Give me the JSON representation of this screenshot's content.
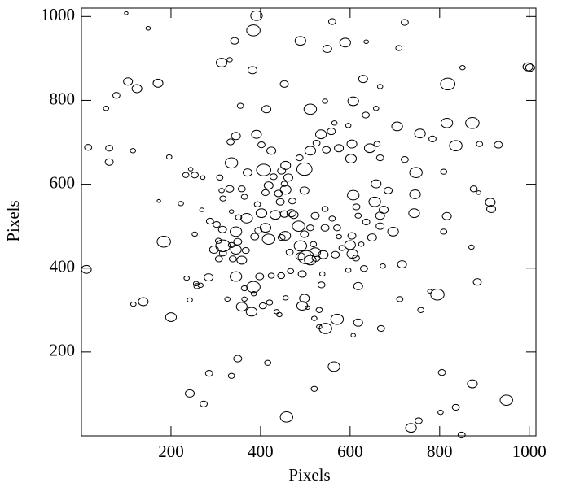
{
  "chart_data": {
    "type": "ellipse-scatter",
    "x_label": "Pixels",
    "y_label": "Pixels",
    "xlim": [
      0,
      1015
    ],
    "ylim": [
      0,
      1020
    ],
    "xticks": [
      200,
      400,
      600,
      800,
      1000
    ],
    "yticks": [
      200,
      400,
      600,
      800,
      1000
    ],
    "points": [
      [
        100,
        1008,
        4
      ],
      [
        149,
        972,
        5
      ],
      [
        391,
        1002,
        13
      ],
      [
        384,
        967,
        15
      ],
      [
        560,
        988,
        8
      ],
      [
        722,
        986,
        8
      ],
      [
        489,
        942,
        12
      ],
      [
        342,
        942,
        9
      ],
      [
        549,
        923,
        10
      ],
      [
        589,
        938,
        12
      ],
      [
        636,
        940,
        5
      ],
      [
        709,
        925,
        7
      ],
      [
        313,
        890,
        12
      ],
      [
        331,
        897,
        6
      ],
      [
        382,
        872,
        10
      ],
      [
        104,
        845,
        10
      ],
      [
        124,
        828,
        11
      ],
      [
        171,
        841,
        11
      ],
      [
        55,
        781,
        6
      ],
      [
        78,
        812,
        8
      ],
      [
        453,
        839,
        9
      ],
      [
        629,
        851,
        10
      ],
      [
        667,
        833,
        6
      ],
      [
        818,
        839,
        16
      ],
      [
        851,
        878,
        6
      ],
      [
        413,
        779,
        10
      ],
      [
        355,
        787,
        7
      ],
      [
        511,
        779,
        14
      ],
      [
        544,
        798,
        6
      ],
      [
        607,
        798,
        12
      ],
      [
        658,
        781,
        6
      ],
      [
        635,
        765,
        8
      ],
      [
        565,
        746,
        6
      ],
      [
        535,
        719,
        12
      ],
      [
        558,
        726,
        9
      ],
      [
        596,
        740,
        6
      ],
      [
        705,
        738,
        12
      ],
      [
        756,
        721,
        12
      ],
      [
        784,
        708,
        8
      ],
      [
        816,
        746,
        13
      ],
      [
        873,
        746,
        15
      ],
      [
        836,
        692,
        14
      ],
      [
        889,
        696,
        7
      ],
      [
        931,
        694,
        9
      ],
      [
        1002,
        878,
        10
      ],
      [
        15,
        688,
        8
      ],
      [
        62,
        686,
        8
      ],
      [
        62,
        653,
        9
      ],
      [
        115,
        680,
        6
      ],
      [
        196,
        665,
        6
      ],
      [
        333,
        701,
        8
      ],
      [
        345,
        715,
        10
      ],
      [
        391,
        719,
        11
      ],
      [
        402,
        694,
        8
      ],
      [
        424,
        680,
        10
      ],
      [
        407,
        634,
        16
      ],
      [
        371,
        628,
        10
      ],
      [
        335,
        651,
        14
      ],
      [
        498,
        636,
        17
      ],
      [
        487,
        663,
        8
      ],
      [
        511,
        680,
        12
      ],
      [
        547,
        682,
        9
      ],
      [
        525,
        698,
        8
      ],
      [
        575,
        686,
        10
      ],
      [
        602,
        661,
        12
      ],
      [
        604,
        696,
        11
      ],
      [
        644,
        686,
        12
      ],
      [
        660,
        696,
        7
      ],
      [
        667,
        663,
        8
      ],
      [
        722,
        659,
        8
      ],
      [
        747,
        628,
        14
      ],
      [
        745,
        576,
        12
      ],
      [
        809,
        630,
        7
      ],
      [
        876,
        589,
        8
      ],
      [
        887,
        580,
        5
      ],
      [
        913,
        557,
        11
      ],
      [
        915,
        541,
        10
      ],
      [
        816,
        524,
        10
      ],
      [
        809,
        487,
        7
      ],
      [
        871,
        450,
        6
      ],
      [
        884,
        367,
        9
      ],
      [
        795,
        337,
        15
      ],
      [
        778,
        345,
        5
      ],
      [
        758,
        300,
        7
      ],
      [
        716,
        409,
        10
      ],
      [
        673,
        405,
        6
      ],
      [
        711,
        326,
        7
      ],
      [
        743,
        531,
        12
      ],
      [
        696,
        487,
        12
      ],
      [
        675,
        539,
        10
      ],
      [
        655,
        558,
        13
      ],
      [
        658,
        601,
        11
      ],
      [
        685,
        585,
        9
      ],
      [
        667,
        525,
        10
      ],
      [
        667,
        500,
        9
      ],
      [
        649,
        473,
        10
      ],
      [
        636,
        510,
        8
      ],
      [
        618,
        525,
        7
      ],
      [
        614,
        546,
        8
      ],
      [
        604,
        477,
        9
      ],
      [
        600,
        455,
        12
      ],
      [
        613,
        424,
        8
      ],
      [
        605,
        434,
        12
      ],
      [
        607,
        574,
        13
      ],
      [
        625,
        457,
        6
      ],
      [
        631,
        399,
        8
      ],
      [
        567,
        432,
        9
      ],
      [
        540,
        432,
        11
      ],
      [
        522,
        438,
        12
      ],
      [
        511,
        419,
        13
      ],
      [
        489,
        453,
        14
      ],
      [
        502,
        426,
        18
      ],
      [
        498,
        585,
        10
      ],
      [
        456,
        587,
        12
      ],
      [
        440,
        578,
        9
      ],
      [
        444,
        558,
        9
      ],
      [
        433,
        527,
        12
      ],
      [
        453,
        529,
        9
      ],
      [
        462,
        616,
        10
      ],
      [
        456,
        645,
        11
      ],
      [
        447,
        632,
        9
      ],
      [
        429,
        618,
        8
      ],
      [
        418,
        597,
        10
      ],
      [
        411,
        580,
        8
      ],
      [
        393,
        552,
        7
      ],
      [
        402,
        531,
        12
      ],
      [
        411,
        496,
        12
      ],
      [
        395,
        490,
        8
      ],
      [
        387,
        475,
        9
      ],
      [
        418,
        469,
        14
      ],
      [
        455,
        477,
        12
      ],
      [
        469,
        531,
        10
      ],
      [
        369,
        519,
        13
      ],
      [
        351,
        521,
        7
      ],
      [
        335,
        535,
        5
      ],
      [
        345,
        487,
        13
      ],
      [
        349,
        463,
        9
      ],
      [
        345,
        444,
        12
      ],
      [
        367,
        442,
        8
      ],
      [
        358,
        419,
        11
      ],
      [
        316,
        436,
        8
      ],
      [
        316,
        453,
        16
      ],
      [
        302,
        504,
        8
      ],
      [
        315,
        492,
        9
      ],
      [
        335,
        455,
        7
      ],
      [
        338,
        422,
        8
      ],
      [
        307,
        422,
        8
      ],
      [
        296,
        444,
        10
      ],
      [
        306,
        465,
        7
      ],
      [
        345,
        380,
        13
      ],
      [
        384,
        355,
        15
      ],
      [
        398,
        380,
        9
      ],
      [
        424,
        382,
        7
      ],
      [
        446,
        382,
        8
      ],
      [
        467,
        393,
        7
      ],
      [
        493,
        386,
        9
      ],
      [
        447,
        473,
        8
      ],
      [
        485,
        500,
        14
      ],
      [
        498,
        481,
        9
      ],
      [
        518,
        457,
        7
      ],
      [
        489,
        428,
        10
      ],
      [
        465,
        438,
        8
      ],
      [
        524,
        424,
        9
      ],
      [
        498,
        328,
        11
      ],
      [
        531,
        300,
        7
      ],
      [
        536,
        360,
        8
      ],
      [
        538,
        386,
        6
      ],
      [
        596,
        395,
        6
      ],
      [
        618,
        357,
        10
      ],
      [
        582,
        448,
        7
      ],
      [
        575,
        475,
        6
      ],
      [
        544,
        496,
        9
      ],
      [
        571,
        496,
        8
      ],
      [
        560,
        518,
        7
      ],
      [
        544,
        541,
        7
      ],
      [
        522,
        525,
        9
      ],
      [
        511,
        496,
        8
      ],
      [
        474,
        527,
        10
      ],
      [
        471,
        560,
        8
      ],
      [
        453,
        601,
        7
      ],
      [
        364,
        570,
        7
      ],
      [
        358,
        589,
        8
      ],
      [
        331,
        589,
        9
      ],
      [
        313,
        585,
        6
      ],
      [
        309,
        616,
        7
      ],
      [
        271,
        616,
        5
      ],
      [
        253,
        622,
        8
      ],
      [
        233,
        622,
        7
      ],
      [
        244,
        636,
        5
      ],
      [
        222,
        554,
        6
      ],
      [
        173,
        560,
        4
      ],
      [
        184,
        463,
        15
      ],
      [
        253,
        481,
        6
      ],
      [
        269,
        539,
        5
      ],
      [
        287,
        512,
        8
      ],
      [
        316,
        566,
        7
      ],
      [
        284,
        378,
        10
      ],
      [
        258,
        357,
        7
      ],
      [
        256,
        363,
        6
      ],
      [
        235,
        376,
        6
      ],
      [
        266,
        359,
        6
      ],
      [
        242,
        324,
        6
      ],
      [
        326,
        326,
        6
      ],
      [
        358,
        308,
        12
      ],
      [
        380,
        296,
        12
      ],
      [
        405,
        310,
        8
      ],
      [
        420,
        318,
        7
      ],
      [
        436,
        296,
        6
      ],
      [
        442,
        289,
        6
      ],
      [
        456,
        329,
        6
      ],
      [
        493,
        310,
        12
      ],
      [
        505,
        306,
        5
      ],
      [
        364,
        326,
        6
      ],
      [
        364,
        352,
        7
      ],
      [
        385,
        339,
        6
      ],
      [
        138,
        320,
        11
      ],
      [
        116,
        314,
        6
      ],
      [
        200,
        283,
        12
      ],
      [
        520,
        280,
        6
      ],
      [
        571,
        278,
        14
      ],
      [
        531,
        260,
        6
      ],
      [
        545,
        256,
        14
      ],
      [
        618,
        270,
        10
      ],
      [
        607,
        240,
        5
      ],
      [
        669,
        256,
        8
      ],
      [
        349,
        184,
        9
      ],
      [
        416,
        174,
        7
      ],
      [
        335,
        143,
        7
      ],
      [
        285,
        149,
        8
      ],
      [
        564,
        165,
        13
      ],
      [
        520,
        112,
        7
      ],
      [
        242,
        101,
        10
      ],
      [
        273,
        76,
        8
      ],
      [
        458,
        45,
        14
      ],
      [
        736,
        19,
        12
      ],
      [
        753,
        36,
        8
      ],
      [
        802,
        56,
        6
      ],
      [
        849,
        2,
        8
      ],
      [
        836,
        68,
        8
      ],
      [
        873,
        124,
        11
      ],
      [
        805,
        151,
        8
      ],
      [
        949,
        85,
        14
      ],
      [
        997,
        880,
        11
      ],
      [
        11,
        397,
        11
      ]
    ]
  }
}
